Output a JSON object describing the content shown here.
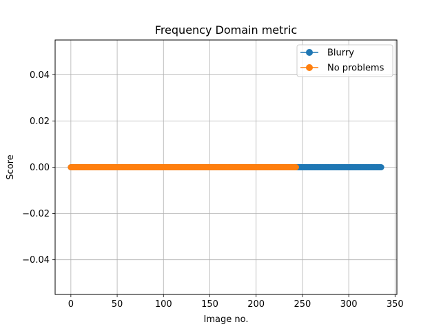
{
  "chart_data": {
    "type": "line",
    "title": "Frequency Domain metric",
    "xlabel": "Image no.",
    "ylabel": "Score",
    "xlim": [
      -17,
      352
    ],
    "ylim": [
      -0.055,
      0.055
    ],
    "xticks": [
      0,
      50,
      100,
      150,
      200,
      250,
      300,
      350
    ],
    "xtick_labels": [
      "0",
      "50",
      "100",
      "150",
      "200",
      "250",
      "300",
      "350"
    ],
    "yticks": [
      -0.04,
      -0.02,
      0.0,
      0.02,
      0.04
    ],
    "ytick_labels": [
      "−0.04",
      "−0.02",
      "0.00",
      "0.02",
      "0.04"
    ],
    "grid": true,
    "legend_position": "top-right",
    "series": [
      {
        "name": "Blurry",
        "color": "#1f77b4",
        "marker": "circle",
        "x_start": 0,
        "x_end": 335,
        "value": 0.0
      },
      {
        "name": "No problems",
        "color": "#ff7f0e",
        "marker": "circle",
        "x_start": 0,
        "x_end": 243,
        "value": 0.0
      }
    ]
  }
}
